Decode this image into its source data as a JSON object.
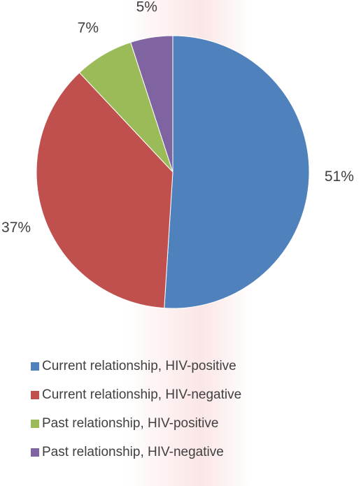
{
  "chart_data": {
    "type": "pie",
    "categories": [
      "Current relationship, HIV-positive",
      "Current relationship, HIV-negative",
      "Past relationship, HIV-positive",
      "Past relationship, HIV-negative"
    ],
    "values": [
      51,
      37,
      7,
      5
    ],
    "value_labels": [
      "51%",
      "37%",
      "7%",
      "5%"
    ],
    "colors": [
      "#4f81bd",
      "#c0504d",
      "#9bbb59",
      "#8064a2"
    ],
    "legend": "bottom"
  }
}
